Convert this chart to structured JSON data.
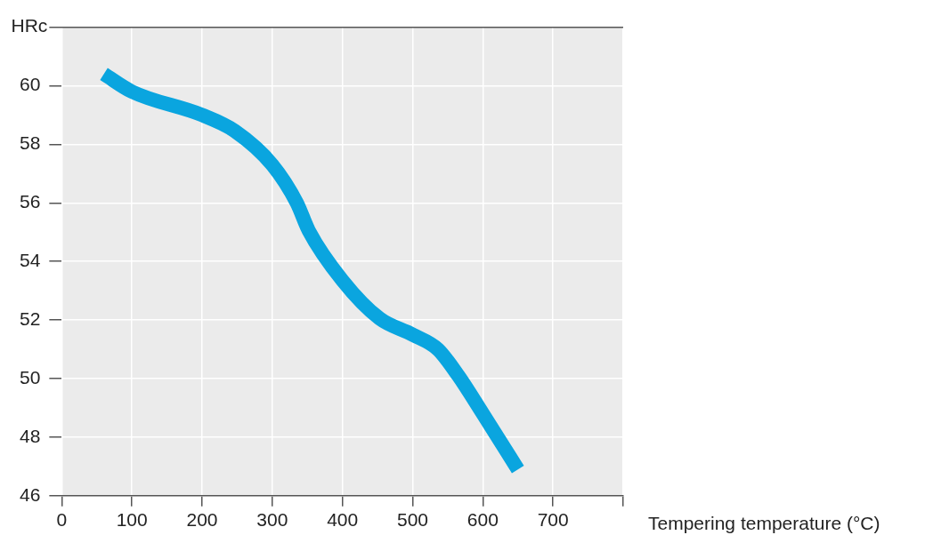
{
  "chart_data": {
    "type": "line",
    "xlabel": "Tempering temperature (°C)",
    "ylabel": "HRc",
    "x": [
      60,
      100,
      200,
      247,
      300,
      335,
      352,
      400,
      453,
      500,
      536,
      565,
      600,
      650
    ],
    "series": [
      {
        "color": "#0aa5df",
        "values": [
          60.4,
          59.8,
          59.0,
          58.45,
          57.3,
          56.0,
          55.05,
          53.35,
          52.05,
          51.5,
          51.0,
          50.1,
          48.8,
          46.9
        ]
      }
    ],
    "xlim": [
      0,
      800
    ],
    "xticks": [
      0,
      100,
      200,
      300,
      400,
      500,
      600,
      700,
      {
        "value": 800,
        "label": null
      }
    ],
    "ylim": [
      46,
      62
    ],
    "yticks": [
      46,
      48,
      50,
      52,
      54,
      56,
      58,
      60,
      {
        "value": 62,
        "label": null
      }
    ],
    "grid": true,
    "marker": "none",
    "line_style": "solid"
  }
}
